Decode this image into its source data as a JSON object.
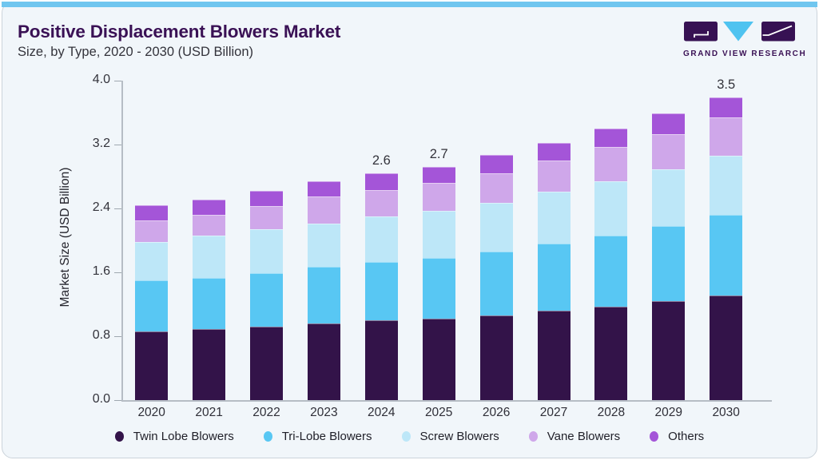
{
  "theme": {
    "accent_bar_color": "#70C6EF",
    "card_background": "#F1F6FA",
    "title_color": "#3A1155",
    "axis_color": "#B6BDC5",
    "text_color": "#33333B"
  },
  "header": {
    "title": "Positive Displacement Blowers Market",
    "subtitle": "Size, by Type, 2020 - 2030 (USD Billion)"
  },
  "logo": {
    "name": "grand-view-research-logo",
    "text": "GRAND VIEW RESEARCH",
    "dark_color": "#371153",
    "triangle_color": "#4FC3F0"
  },
  "chart_data": {
    "type": "bar",
    "stacked": true,
    "title": "Positive Displacement Blowers Market Size, by Type, 2020 - 2030 (USD Billion)",
    "xlabel": "",
    "ylabel": "Market Size (USD Billion)",
    "ylim": [
      0,
      4.0
    ],
    "yticks": [
      "0.0",
      "0.8",
      "1.6",
      "2.4",
      "3.2",
      "4.0"
    ],
    "grid": false,
    "legend_position": "bottom",
    "categories": [
      "2020",
      "2021",
      "2022",
      "2023",
      "2024",
      "2025",
      "2026",
      "2027",
      "2028",
      "2029",
      "2030"
    ],
    "series": [
      {
        "name": "Twin Lobe Blowers",
        "color": "#331349",
        "values": [
          0.79,
          0.82,
          0.85,
          0.89,
          0.92,
          0.94,
          0.98,
          1.03,
          1.08,
          1.14,
          1.21
        ]
      },
      {
        "name": "Tri-Lobe Blowers",
        "color": "#58C7F3",
        "values": [
          0.59,
          0.59,
          0.62,
          0.65,
          0.68,
          0.7,
          0.74,
          0.78,
          0.82,
          0.87,
          0.93
        ]
      },
      {
        "name": "Screw Blowers",
        "color": "#BDE7F8",
        "values": [
          0.45,
          0.49,
          0.5,
          0.5,
          0.52,
          0.55,
          0.56,
          0.6,
          0.63,
          0.66,
          0.68
        ]
      },
      {
        "name": "Vane Blowers",
        "color": "#CFA7EA",
        "values": [
          0.25,
          0.24,
          0.27,
          0.31,
          0.31,
          0.32,
          0.34,
          0.36,
          0.39,
          0.4,
          0.45
        ]
      },
      {
        "name": "Others",
        "color": "#A455D8",
        "values": [
          0.17,
          0.18,
          0.18,
          0.18,
          0.19,
          0.18,
          0.21,
          0.2,
          0.22,
          0.24,
          0.23
        ]
      }
    ],
    "total_labels": [
      "",
      "",
      "",
      "",
      "2.6",
      "2.7",
      "",
      "",
      "",
      "",
      "3.5"
    ]
  }
}
